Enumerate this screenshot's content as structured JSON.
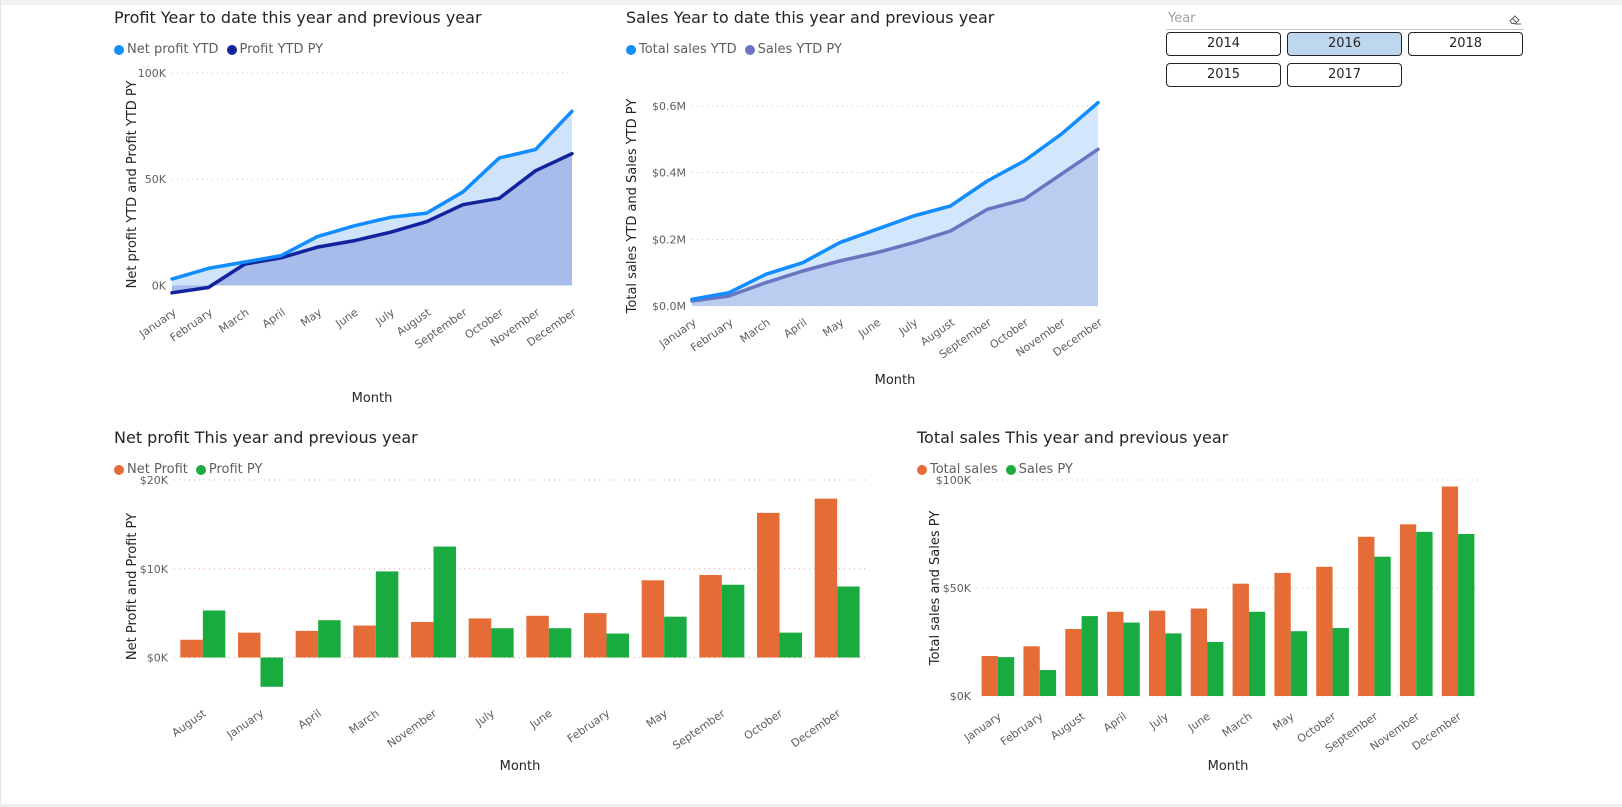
{
  "slicer": {
    "label": "Year",
    "options": [
      "2014",
      "2016",
      "2018",
      "2015",
      "2017"
    ],
    "selected": "2016"
  },
  "chart_data": [
    {
      "id": "profit-ytd",
      "type": "area",
      "title": "Profit Year to date this year and previous year",
      "xlabel": "Month",
      "ylabel": "Net profit YTD and Profit YTD PY",
      "categories": [
        "January",
        "February",
        "March",
        "April",
        "May",
        "June",
        "July",
        "August",
        "September",
        "October",
        "November",
        "December"
      ],
      "series": [
        {
          "name": "Net profit YTD",
          "color": "#118dff",
          "values": [
            3000,
            8000,
            11000,
            14000,
            23000,
            28000,
            32000,
            34000,
            44000,
            60000,
            64000,
            82000
          ]
        },
        {
          "name": "Profit YTD PY",
          "color": "#12239e",
          "values": [
            -3500,
            -1000,
            10000,
            13000,
            18000,
            21000,
            25000,
            30000,
            38000,
            41000,
            54000,
            62000
          ]
        }
      ],
      "ylim": [
        -5000,
        100000
      ],
      "yticks": [
        {
          "v": 0,
          "label": "0K"
        },
        {
          "v": 50000,
          "label": "50K"
        },
        {
          "v": 100000,
          "label": "100K"
        }
      ],
      "grid": true,
      "legend": "top-left"
    },
    {
      "id": "sales-ytd",
      "type": "area",
      "title": "Sales Year to date this year and previous year",
      "xlabel": "Month",
      "ylabel": "Total sales YTD and Sales YTD PY",
      "categories": [
        "January",
        "February",
        "March",
        "April",
        "May",
        "June",
        "July",
        "August",
        "September",
        "October",
        "November",
        "December"
      ],
      "series": [
        {
          "name": "Total sales YTD",
          "color": "#118dff",
          "values": [
            0.02,
            0.04,
            0.095,
            0.13,
            0.19,
            0.23,
            0.27,
            0.3,
            0.375,
            0.435,
            0.515,
            0.61
          ]
        },
        {
          "name": "Sales YTD PY",
          "color": "#6b74c1",
          "values": [
            0.015,
            0.03,
            0.07,
            0.105,
            0.135,
            0.16,
            0.19,
            0.225,
            0.29,
            0.32,
            0.395,
            0.47
          ]
        }
      ],
      "ylim": [
        0,
        0.6
      ],
      "yticks": [
        {
          "v": 0,
          "label": "$0.0M"
        },
        {
          "v": 0.2,
          "label": "$0.2M"
        },
        {
          "v": 0.4,
          "label": "$0.4M"
        },
        {
          "v": 0.6,
          "label": "$0.6M"
        }
      ],
      "grid": true,
      "legend": "top-left"
    },
    {
      "id": "net-profit",
      "type": "bar",
      "title": "Net profit This year and previous year",
      "xlabel": "Month",
      "ylabel": "Net Profit and Profit PY",
      "categories": [
        "August",
        "January",
        "April",
        "March",
        "November",
        "July",
        "June",
        "February",
        "May",
        "September",
        "October",
        "December"
      ],
      "series": [
        {
          "name": "Net Profit",
          "color": "#e66c37",
          "values": [
            2000,
            2800,
            3000,
            3600,
            4000,
            4400,
            4700,
            5000,
            8700,
            9300,
            16300,
            17900
          ]
        },
        {
          "name": "Profit PY",
          "color": "#1aab40",
          "values": [
            5300,
            -3300,
            4200,
            9700,
            12500,
            3300,
            3300,
            2700,
            4600,
            8200,
            2800,
            8000
          ]
        }
      ],
      "ylim": [
        -4000,
        20000
      ],
      "yticks": [
        {
          "v": 0,
          "label": "$0K"
        },
        {
          "v": 10000,
          "label": "$10K"
        },
        {
          "v": 20000,
          "label": "$20K"
        }
      ],
      "grid": true,
      "legend": "top-left"
    },
    {
      "id": "total-sales",
      "type": "bar",
      "title": "Total sales This year and previous year",
      "xlabel": "Month",
      "ylabel": "Total sales and Sales PY",
      "categories": [
        "January",
        "February",
        "August",
        "April",
        "July",
        "June",
        "March",
        "May",
        "October",
        "September",
        "November",
        "December"
      ],
      "series": [
        {
          "name": "Total sales",
          "color": "#e66c37",
          "values": [
            18500,
            23000,
            31000,
            39000,
            39500,
            40500,
            52000,
            57000,
            59800,
            73700,
            79500,
            97000
          ]
        },
        {
          "name": "Sales PY",
          "color": "#1aab40",
          "values": [
            18000,
            12000,
            37000,
            34000,
            29000,
            25000,
            39000,
            30000,
            31500,
            64500,
            76000,
            75000
          ]
        }
      ],
      "ylim": [
        0,
        100000
      ],
      "yticks": [
        {
          "v": 0,
          "label": "$0K"
        },
        {
          "v": 50000,
          "label": "$50K"
        },
        {
          "v": 100000,
          "label": "$100K"
        }
      ],
      "grid": true,
      "legend": "top-left"
    }
  ]
}
